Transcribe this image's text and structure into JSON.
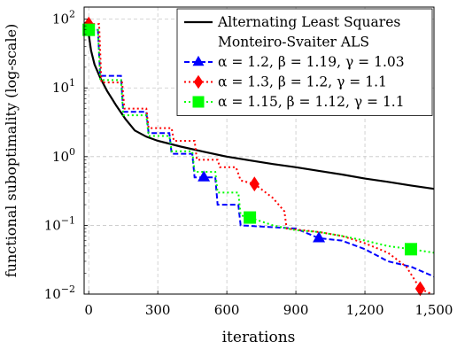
{
  "chart_data": {
    "type": "line",
    "xlabel": "iterations",
    "ylabel": "functional suboptimality (log-scale)",
    "x_ticks": [
      {
        "value": 0,
        "label": "0"
      },
      {
        "value": 300,
        "label": "300"
      },
      {
        "value": 600,
        "label": "600"
      },
      {
        "value": 900,
        "label": "900"
      },
      {
        "value": 1200,
        "label": "1,200"
      },
      {
        "value": 1500,
        "label": "1,500"
      }
    ],
    "y_ticks": [
      {
        "value": 0.01,
        "base": "10",
        "exp": "−2"
      },
      {
        "value": 0.1,
        "base": "10",
        "exp": "−1"
      },
      {
        "value": 1,
        "base": "10",
        "exp": "0"
      },
      {
        "value": 10,
        "base": "10",
        "exp": "1"
      },
      {
        "value": 100,
        "base": "10",
        "exp": "2"
      }
    ],
    "xlim": [
      -20,
      1500
    ],
    "ylim": [
      0.01,
      150
    ],
    "y_scale": "log",
    "grid": true,
    "legend_position": "top-right",
    "series": [
      {
        "name": "Alternating Least Squares",
        "style": "solid",
        "color": "#000000",
        "marker": "none",
        "points": [
          [
            0,
            60
          ],
          [
            10,
            35
          ],
          [
            25,
            22
          ],
          [
            50,
            14
          ],
          [
            80,
            9
          ],
          [
            120,
            5.5
          ],
          [
            160,
            3.5
          ],
          [
            200,
            2.4
          ],
          [
            250,
            1.95
          ],
          [
            300,
            1.7
          ],
          [
            400,
            1.4
          ],
          [
            500,
            1.18
          ],
          [
            600,
            1.0
          ],
          [
            700,
            0.88
          ],
          [
            800,
            0.78
          ],
          [
            900,
            0.7
          ],
          [
            1000,
            0.62
          ],
          [
            1100,
            0.55
          ],
          [
            1200,
            0.48
          ],
          [
            1300,
            0.43
          ],
          [
            1400,
            0.38
          ],
          [
            1500,
            0.34
          ]
        ]
      },
      {
        "name": "Monteiro-Svaiter ALS",
        "style": "blank",
        "color": "#000000",
        "marker": "none",
        "points": []
      },
      {
        "name": "α = 1.2, β = 1.19, γ = 1.03",
        "style": "dashed",
        "color": "#0000ff",
        "marker": "triangle",
        "points": [
          [
            0,
            70
          ],
          [
            40,
            70
          ],
          [
            50,
            15
          ],
          [
            140,
            15
          ],
          [
            150,
            4.5
          ],
          [
            250,
            4.5
          ],
          [
            260,
            2.2
          ],
          [
            350,
            2.2
          ],
          [
            360,
            1.1
          ],
          [
            450,
            1.1
          ],
          [
            460,
            0.5
          ],
          [
            550,
            0.5
          ],
          [
            560,
            0.2
          ],
          [
            650,
            0.2
          ],
          [
            660,
            0.1
          ],
          [
            900,
            0.09
          ],
          [
            1000,
            0.065
          ],
          [
            1100,
            0.06
          ],
          [
            1200,
            0.045
          ],
          [
            1300,
            0.03
          ],
          [
            1400,
            0.025
          ],
          [
            1500,
            0.018
          ]
        ],
        "markers": [
          [
            0,
            70
          ],
          [
            500,
            0.5
          ],
          [
            1000,
            0.065
          ]
        ]
      },
      {
        "name": "α = 1.3, β = 1.2, γ = 1.1",
        "style": "dotted",
        "color": "#ff0000",
        "marker": "diamond",
        "points": [
          [
            0,
            85
          ],
          [
            45,
            85
          ],
          [
            55,
            12
          ],
          [
            145,
            12
          ],
          [
            155,
            5
          ],
          [
            250,
            5
          ],
          [
            260,
            2.6
          ],
          [
            360,
            2.6
          ],
          [
            370,
            1.7
          ],
          [
            460,
            1.7
          ],
          [
            470,
            0.9
          ],
          [
            560,
            0.9
          ],
          [
            570,
            0.7
          ],
          [
            640,
            0.7
          ],
          [
            660,
            0.45
          ],
          [
            720,
            0.4
          ],
          [
            800,
            0.25
          ],
          [
            850,
            0.16
          ],
          [
            860,
            0.09
          ],
          [
            1000,
            0.08
          ],
          [
            1100,
            0.07
          ],
          [
            1200,
            0.055
          ],
          [
            1300,
            0.04
          ],
          [
            1380,
            0.025
          ],
          [
            1440,
            0.012
          ],
          [
            1490,
            0.01
          ]
        ],
        "markers": [
          [
            0,
            85
          ],
          [
            720,
            0.4
          ],
          [
            1440,
            0.012
          ]
        ]
      },
      {
        "name": "α = 1.15, β = 1.12, γ = 1.1",
        "style": "dotted",
        "color": "#00ff00",
        "marker": "square",
        "points": [
          [
            0,
            70
          ],
          [
            40,
            70
          ],
          [
            50,
            13
          ],
          [
            140,
            13
          ],
          [
            150,
            4
          ],
          [
            250,
            4
          ],
          [
            260,
            2
          ],
          [
            350,
            2
          ],
          [
            360,
            1.2
          ],
          [
            450,
            1.2
          ],
          [
            460,
            0.6
          ],
          [
            550,
            0.6
          ],
          [
            560,
            0.3
          ],
          [
            650,
            0.3
          ],
          [
            660,
            0.14
          ],
          [
            700,
            0.13
          ],
          [
            800,
            0.1
          ],
          [
            900,
            0.085
          ],
          [
            1000,
            0.08
          ],
          [
            1100,
            0.07
          ],
          [
            1200,
            0.06
          ],
          [
            1300,
            0.05
          ],
          [
            1400,
            0.045
          ],
          [
            1500,
            0.04
          ]
        ],
        "markers": [
          [
            0,
            70
          ],
          [
            700,
            0.13
          ],
          [
            1400,
            0.045
          ]
        ]
      }
    ]
  }
}
